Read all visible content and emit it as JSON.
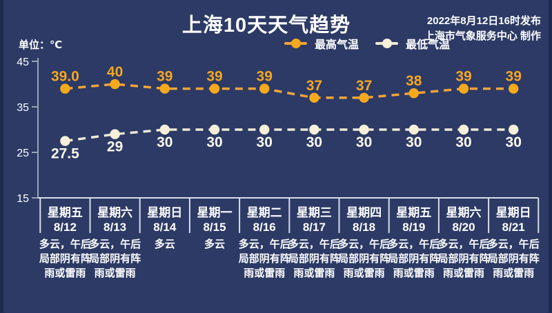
{
  "header": {
    "title": "上海10天天气趋势",
    "publish_line1": "2022年8月12日16时发布",
    "publish_line2": "上海市气象服务中心 制作"
  },
  "legend": {
    "high_label": "最高气温",
    "low_label": "最低气温"
  },
  "axis": {
    "unit_label": "单位：℃"
  },
  "colors": {
    "bg": "#2c3a65",
    "edge": "#1f2c4e",
    "text": "#ffffff",
    "high_line": "#f2a53a",
    "high_marker": "#f7a91d",
    "high_label": "#f5a623",
    "low_line": "#efe9d6",
    "low_marker": "#f6efda",
    "low_label": "#fcf9ee",
    "axis_line": "#9aa3b5",
    "divider": "#d9dee9"
  },
  "chart_data": {
    "type": "line",
    "title": "上海10天天气趋势",
    "ylabel": "单位：℃",
    "ylim": [
      15,
      45
    ],
    "yticks": [
      45,
      35,
      25,
      15
    ],
    "grid": false,
    "legend_position": "top",
    "categories": [
      "8/12",
      "8/13",
      "8/14",
      "8/15",
      "8/16",
      "8/17",
      "8/18",
      "8/19",
      "8/20",
      "8/21"
    ],
    "days": [
      {
        "weekday": "星期五",
        "date": "8/12",
        "weather": [
          "多云，午后",
          "局部阴有阵",
          "雨或雷雨"
        ]
      },
      {
        "weekday": "星期六",
        "date": "8/13",
        "weather": [
          "多云，午后",
          "局部阴有阵",
          "雨或雷雨"
        ]
      },
      {
        "weekday": "星期日",
        "date": "8/14",
        "weather": [
          "多云"
        ]
      },
      {
        "weekday": "星期一",
        "date": "8/15",
        "weather": [
          "多云"
        ]
      },
      {
        "weekday": "星期二",
        "date": "8/16",
        "weather": [
          "多云，午后",
          "局部阴有阵",
          "雨或雷雨"
        ]
      },
      {
        "weekday": "星期三",
        "date": "8/17",
        "weather": [
          "多云，午后",
          "局部阴有阵",
          "雨或雷雨"
        ]
      },
      {
        "weekday": "星期四",
        "date": "8/18",
        "weather": [
          "多云，午后",
          "局部阴有阵",
          "雨或雷雨"
        ]
      },
      {
        "weekday": "星期五",
        "date": "8/19",
        "weather": [
          "多云，午后",
          "局部阴有阵",
          "雨或雷雨"
        ]
      },
      {
        "weekday": "星期六",
        "date": "8/20",
        "weather": [
          "多云，午后",
          "局部阴有阵",
          "雨或雷雨"
        ]
      },
      {
        "weekday": "星期日",
        "date": "8/21",
        "weather": [
          "多云，午后",
          "局部阴有阵",
          "雨或雷雨"
        ]
      }
    ],
    "series": [
      {
        "name": "最高气温",
        "values": [
          39.0,
          40,
          39,
          39,
          39,
          37,
          37,
          38,
          39,
          39
        ],
        "labels": [
          "39.0",
          "40",
          "39",
          "39",
          "39",
          "37",
          "37",
          "38",
          "39",
          "39"
        ]
      },
      {
        "name": "最低气温",
        "values": [
          27.5,
          29,
          30,
          30,
          30,
          30,
          30,
          30,
          30,
          30
        ],
        "labels": [
          "27.5",
          "29",
          "30",
          "30",
          "30",
          "30",
          "30",
          "30",
          "30",
          "30"
        ]
      }
    ]
  }
}
